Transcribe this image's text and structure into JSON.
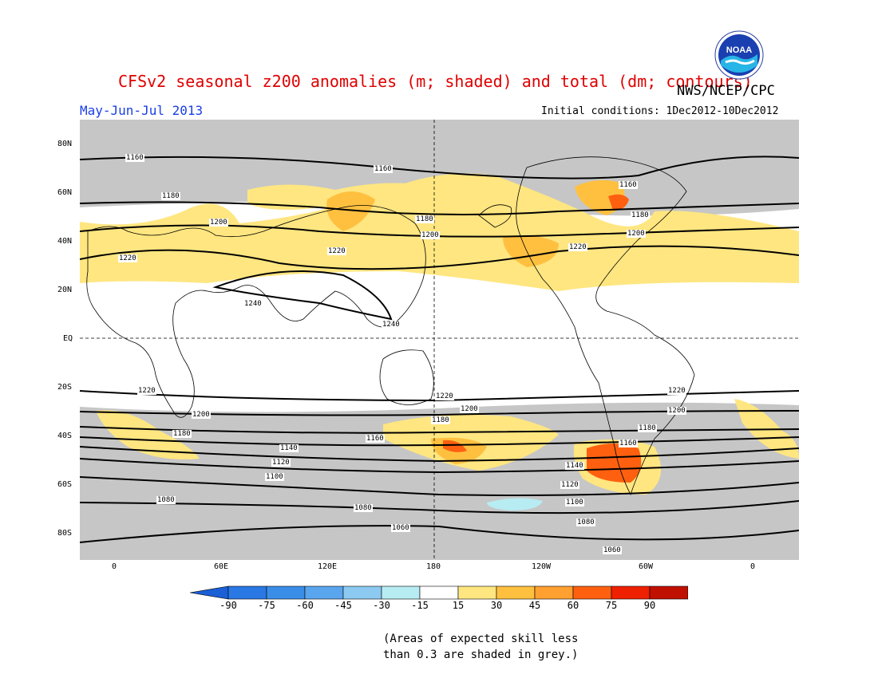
{
  "title": "CFSv2 seasonal z200 anomalies (m; shaded) and total (dm; contours)",
  "agency": "NWS/NCEP/CPC",
  "logo_text": "NOAA",
  "season": "May-Jun-Jul 2013",
  "initial_conditions": "Initial conditions: 1Dec2012-10Dec2012",
  "lat_labels": [
    "80N",
    "60N",
    "40N",
    "20N",
    "EQ",
    "20S",
    "40S",
    "60S",
    "80S"
  ],
  "lon_labels": [
    "0",
    "60E",
    "120E",
    "180",
    "120W",
    "60W",
    "0"
  ],
  "contour_labels": [
    "1160",
    "1160",
    "1160",
    "1180",
    "1180",
    "1180",
    "1200",
    "1200",
    "1200",
    "1220",
    "1220",
    "1220",
    "1240",
    "1240",
    "1220",
    "1220",
    "1220",
    "1200",
    "1200",
    "1200",
    "1180",
    "1180",
    "1180",
    "1160",
    "1160",
    "1140",
    "1140",
    "1120",
    "1120",
    "1100",
    "1100",
    "1080",
    "1080",
    "1080",
    "1060",
    "1060"
  ],
  "colorbar": {
    "labels": [
      "-90",
      "-75",
      "-60",
      "-45",
      "-30",
      "-15",
      "15",
      "30",
      "45",
      "60",
      "75",
      "90"
    ],
    "colors": [
      "#1a5fd6",
      "#2a78e4",
      "#3a8ee8",
      "#5aa6ee",
      "#8ccaf2",
      "#b7ecf2",
      "#ffffff",
      "#ffe680",
      "#ffc040",
      "#ffa030",
      "#ff6010",
      "#ee2000",
      "#c01000",
      "#a00000"
    ]
  },
  "note_line1": "(Areas of expected skill less",
  "note_line2": "than 0.3 are shaded in grey.)"
}
